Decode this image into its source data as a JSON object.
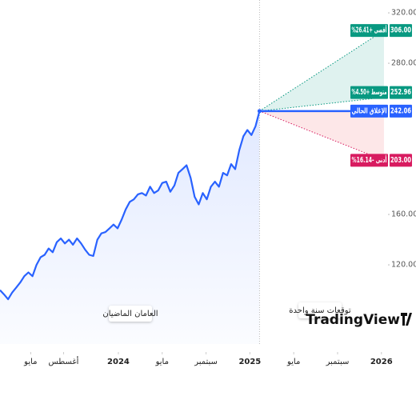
{
  "chart_data": {
    "type": "line",
    "xlim": [
      -10.8,
      24.6
    ],
    "ylim": [
      75.6,
      330.2
    ],
    "yticks": [
      {
        "value": 120,
        "label": "120.00"
      },
      {
        "value": 160,
        "label": "160.00"
      },
      {
        "value": 280,
        "label": "280.00"
      },
      {
        "value": 320,
        "label": "320.00"
      }
    ],
    "xticks": [
      {
        "value": -8,
        "label": "مايو"
      },
      {
        "value": -5,
        "label": "أغسطس"
      },
      {
        "value": 0,
        "label": "2024"
      },
      {
        "value": 4,
        "label": "مايو"
      },
      {
        "value": 8,
        "label": "سبتمبر"
      },
      {
        "value": 12,
        "label": "2025"
      },
      {
        "value": 16,
        "label": "مايو"
      },
      {
        "value": 20,
        "label": "سبتمبر"
      },
      {
        "value": 24,
        "label": "2026"
      }
    ],
    "series": [
      {
        "color": "#2962ff",
        "x": [
          -10.8,
          -10.43,
          -10.06,
          -9.69,
          -9.32,
          -8.95,
          -8.58,
          -8.21,
          -7.84,
          -7.47,
          -7.1,
          -6.73,
          -6.36,
          -5.99,
          -5.62,
          -5.25,
          -4.88,
          -4.51,
          -4.14,
          -3.77,
          -3.4,
          -3.03,
          -2.66,
          -2.29,
          -1.92,
          -1.55,
          -1.18,
          -0.81,
          -0.44,
          -0.07,
          0.3,
          0.67,
          1.04,
          1.41,
          1.78,
          2.15,
          2.52,
          2.89,
          3.26,
          3.63,
          4.0,
          4.37,
          4.74,
          5.11,
          5.48,
          5.85,
          6.22,
          6.59,
          6.96,
          7.33,
          7.7,
          8.07,
          8.44,
          8.81,
          9.18,
          9.55,
          9.92,
          10.29,
          10.66,
          11.03,
          11.4,
          11.77,
          12.14,
          12.51,
          12.88
        ],
        "values": [
          100,
          96.5,
          92.7,
          98,
          102,
          106,
          111,
          114,
          111,
          120,
          126,
          128,
          133,
          130,
          138,
          141,
          137,
          140,
          136,
          141,
          137,
          132,
          128,
          127,
          140,
          145,
          146,
          149,
          152,
          149,
          156,
          164,
          170,
          172,
          176,
          177,
          175,
          182,
          177,
          179,
          185,
          186,
          178,
          183,
          193,
          196,
          199,
          189,
          174,
          168,
          177,
          172,
          182,
          186,
          182,
          193,
          191,
          200,
          196,
          211,
          222,
          227,
          223,
          230,
          242.06
        ]
      }
    ],
    "forecast": {
      "x_end": 24.23,
      "current": {
        "name": "الإغلاق الحالي",
        "value": 242.06,
        "value_label": "242.06",
        "color": "#2962ff"
      },
      "series": [
        {
          "name": "أقصى +26.41%",
          "value": 306,
          "value_label": "306.00",
          "color": "#089981"
        },
        {
          "name": "متوسط +4.50%",
          "value": 252.96,
          "value_label": "252.96",
          "color": "#089981"
        },
        {
          "name": "أدنى -16.14%",
          "value": 203,
          "value_label": "203.00",
          "color": "#d81b60"
        }
      ]
    },
    "annotations": [
      "العامان الماضيان",
      "توقعات سنة واحدة"
    ],
    "logo": "TradingView"
  }
}
